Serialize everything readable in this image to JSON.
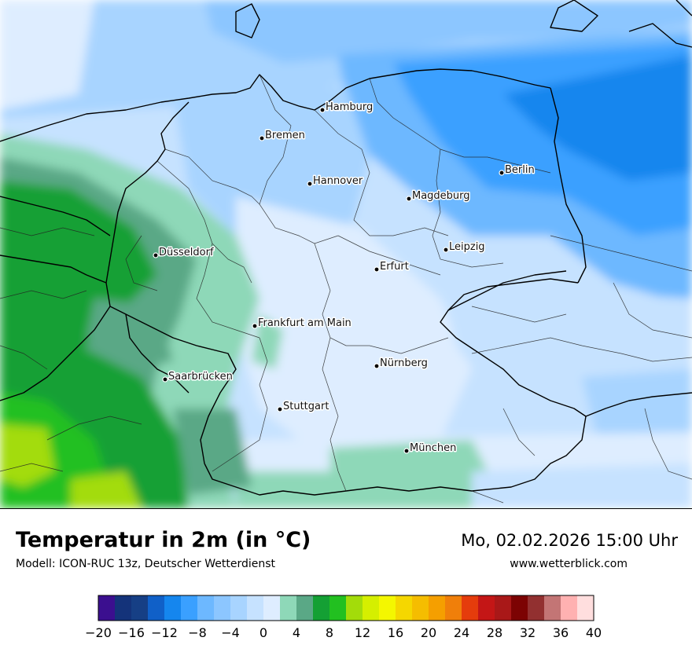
{
  "header": {
    "title": "Temperatur in 2m (in °C)",
    "model": "Modell: ICON-RUC 13z, Deutscher Wetterdienst",
    "datetime": "Mo, 02.02.2026 15:00 Uhr",
    "website": "www.wetterblick.com"
  },
  "map": {
    "cities": [
      {
        "name": "Hamburg"
      },
      {
        "name": "Bremen"
      },
      {
        "name": "Hannover"
      },
      {
        "name": "Berlin"
      },
      {
        "name": "Magdeburg"
      },
      {
        "name": "Düsseldorf"
      },
      {
        "name": "Leipzig"
      },
      {
        "name": "Erfurt"
      },
      {
        "name": "Frankfurt am Main"
      },
      {
        "name": "Nürnberg"
      },
      {
        "name": "Saarbrücken"
      },
      {
        "name": "Stuttgart"
      },
      {
        "name": "München"
      }
    ]
  },
  "legend": {
    "colors": [
      "#3b0f8f",
      "#14337a",
      "#163f85",
      "#1060c8",
      "#1586ee",
      "#3aa0ff",
      "#6db8ff",
      "#8cc6ff",
      "#a8d4ff",
      "#c6e2ff",
      "#deedff",
      "#8ed8b8",
      "#5aa886",
      "#14a034",
      "#22c020",
      "#a3dc0a",
      "#d5ef00",
      "#f4f700",
      "#f5d700",
      "#f5bd00",
      "#f59f00",
      "#f07f0a",
      "#e53c0c",
      "#c41616",
      "#a91818",
      "#7c0303",
      "#923030",
      "#c37575",
      "#ffb1b1",
      "#ffdede"
    ],
    "tick_labels": [
      "−20",
      "−16",
      "−12",
      "−8",
      "−4",
      "0",
      "4",
      "8",
      "12",
      "16",
      "20",
      "24",
      "28",
      "32",
      "36",
      "40"
    ]
  }
}
